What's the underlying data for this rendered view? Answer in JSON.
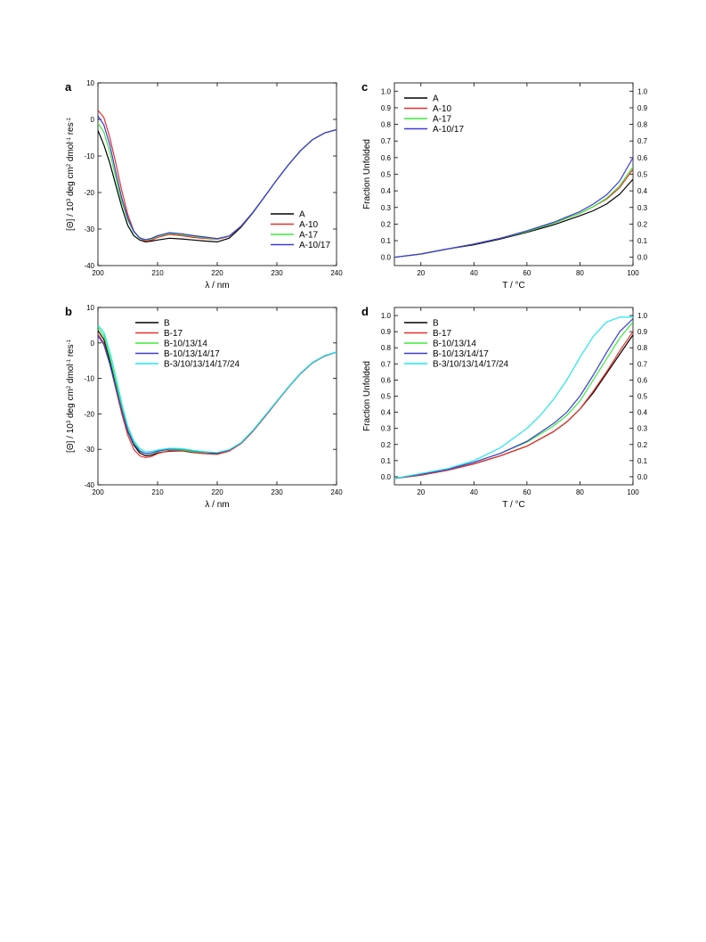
{
  "colors": {
    "black": "#000000",
    "red": "#e8302a",
    "green": "#3ee83a",
    "blue": "#3b3bd6",
    "cyan": "#22e6f2"
  },
  "chart_data": [
    {
      "id": "a",
      "panel_label": "a",
      "type": "line",
      "xlabel": "λ / nm",
      "ylabel_html": "[Θ] / 10<tspan baseline-shift='super' font-size='6'>3</tspan> deg cm<tspan baseline-shift='super' font-size='6'>2</tspan> dmol<tspan baseline-shift='super' font-size='6'>-1</tspan> res<tspan baseline-shift='super' font-size='6'>-1</tspan>",
      "xlim": [
        200,
        240
      ],
      "ylim": [
        -40,
        10
      ],
      "xticks": [
        200,
        210,
        220,
        230,
        240
      ],
      "yticks": [
        -40,
        -30,
        -20,
        -10,
        0,
        10
      ],
      "right_axis_labels": false,
      "legend": "bottom-right",
      "series": [
        {
          "name": "A",
          "color": "#000000",
          "x": [
            200,
            201,
            202,
            203,
            204,
            205,
            206,
            207,
            208,
            209,
            210,
            212,
            214,
            216,
            218,
            220,
            222,
            224,
            226,
            228,
            230,
            232,
            234,
            236,
            238,
            240
          ],
          "y": [
            -3,
            -7,
            -12,
            -18,
            -24,
            -29,
            -31.8,
            -33,
            -33.5,
            -33.3,
            -33,
            -32.5,
            -32.7,
            -33,
            -33.3,
            -33.5,
            -32.5,
            -29.5,
            -25.5,
            -21,
            -16.5,
            -12.3,
            -8.5,
            -5.5,
            -3.7,
            -2.8
          ]
        },
        {
          "name": "A-10",
          "color": "#e8302a",
          "x": [
            200,
            201,
            202,
            203,
            204,
            205,
            206,
            207,
            208,
            209,
            210,
            212,
            214,
            216,
            218,
            220,
            222,
            224,
            226,
            228,
            230,
            232,
            234,
            236,
            238,
            240
          ],
          "y": [
            2.5,
            0.5,
            -5,
            -12,
            -19.5,
            -26,
            -30.5,
            -32.5,
            -33.3,
            -33,
            -32.3,
            -31.5,
            -31.8,
            -32.3,
            -32.6,
            -32.8,
            -32,
            -29.3,
            -25.4,
            -21,
            -16.5,
            -12.3,
            -8.5,
            -5.5,
            -3.7,
            -2.8
          ]
        },
        {
          "name": "A-17",
          "color": "#3ee83a",
          "x": [
            200,
            201,
            202,
            203,
            204,
            205,
            206,
            207,
            208,
            209,
            210,
            212,
            214,
            216,
            218,
            220,
            222,
            224,
            226,
            228,
            230,
            232,
            234,
            236,
            238,
            240
          ],
          "y": [
            -1,
            -3.5,
            -9,
            -16,
            -22.5,
            -27.5,
            -30.8,
            -32.5,
            -33,
            -32.7,
            -32,
            -31.2,
            -31.5,
            -32,
            -32.4,
            -32.7,
            -31.9,
            -29.2,
            -25.4,
            -21,
            -16.5,
            -12.3,
            -8.5,
            -5.5,
            -3.7,
            -2.8
          ]
        },
        {
          "name": "A-10/17",
          "color": "#3b3bd6",
          "x": [
            200,
            201,
            202,
            203,
            204,
            205,
            206,
            207,
            208,
            209,
            210,
            212,
            214,
            216,
            218,
            220,
            222,
            224,
            226,
            228,
            230,
            232,
            234,
            236,
            238,
            240
          ],
          "y": [
            1,
            -1.5,
            -7,
            -14.5,
            -21.5,
            -27,
            -30.6,
            -32.4,
            -32.9,
            -32.5,
            -31.8,
            -31,
            -31.3,
            -31.8,
            -32.2,
            -32.6,
            -31.9,
            -29.2,
            -25.4,
            -21,
            -16.5,
            -12.3,
            -8.5,
            -5.5,
            -3.7,
            -2.8
          ]
        }
      ]
    },
    {
      "id": "b",
      "panel_label": "b",
      "type": "line",
      "xlabel": "λ / nm",
      "ylabel_html": "[Θ] / 10<tspan baseline-shift='super' font-size='6'>3</tspan> deg cm<tspan baseline-shift='super' font-size='6'>2</tspan> dmol<tspan baseline-shift='super' font-size='6'>-1</tspan> res<tspan baseline-shift='super' font-size='6'>-1</tspan>",
      "xlim": [
        200,
        240
      ],
      "ylim": [
        -40,
        10
      ],
      "xticks": [
        200,
        210,
        220,
        230,
        240
      ],
      "yticks": [
        -40,
        -30,
        -20,
        -10,
        0,
        10
      ],
      "right_axis_labels": false,
      "legend": "top-left",
      "series": [
        {
          "name": "B",
          "color": "#000000",
          "x": [
            200,
            201,
            202,
            203,
            204,
            205,
            206,
            207,
            208,
            209,
            210,
            212,
            214,
            216,
            218,
            220,
            222,
            224,
            226,
            228,
            230,
            232,
            234,
            236,
            238,
            240
          ],
          "y": [
            3.5,
            1,
            -5,
            -12,
            -19,
            -25,
            -28.8,
            -31,
            -31.8,
            -31.6,
            -31,
            -30.5,
            -30.4,
            -30.9,
            -31.2,
            -31.2,
            -30.3,
            -28.3,
            -24.8,
            -20.7,
            -16.5,
            -12.4,
            -8.6,
            -5.6,
            -3.7,
            -2.6
          ]
        },
        {
          "name": "B-17",
          "color": "#e8302a",
          "x": [
            200,
            201,
            202,
            203,
            204,
            205,
            206,
            207,
            208,
            209,
            210,
            212,
            214,
            216,
            218,
            220,
            222,
            224,
            226,
            228,
            230,
            232,
            234,
            236,
            238,
            240
          ],
          "y": [
            2.5,
            0,
            -6,
            -13,
            -20,
            -26,
            -30,
            -31.8,
            -32.3,
            -32,
            -31.2,
            -30.3,
            -30.3,
            -30.8,
            -31.2,
            -31.4,
            -30.5,
            -28.4,
            -24.9,
            -20.8,
            -16.6,
            -12.4,
            -8.6,
            -5.6,
            -3.7,
            -2.6
          ]
        },
        {
          "name": "B-10/13/14",
          "color": "#3ee83a",
          "x": [
            200,
            201,
            202,
            203,
            204,
            205,
            206,
            207,
            208,
            209,
            210,
            212,
            214,
            216,
            218,
            220,
            222,
            224,
            226,
            228,
            230,
            232,
            234,
            236,
            238,
            240
          ],
          "y": [
            4.5,
            2,
            -4,
            -11,
            -18,
            -24,
            -28,
            -30.3,
            -31.2,
            -31.1,
            -30.6,
            -30,
            -30.1,
            -30.6,
            -30.9,
            -31,
            -30.2,
            -28.2,
            -24.7,
            -20.6,
            -16.4,
            -12.3,
            -8.5,
            -5.5,
            -3.6,
            -2.6
          ]
        },
        {
          "name": "B-10/13/14/17",
          "color": "#3b3bd6",
          "x": [
            200,
            201,
            202,
            203,
            204,
            205,
            206,
            207,
            208,
            209,
            210,
            212,
            214,
            216,
            218,
            220,
            222,
            224,
            226,
            228,
            230,
            232,
            234,
            236,
            238,
            240
          ],
          "y": [
            2,
            -0.5,
            -6,
            -12.5,
            -19,
            -24.8,
            -28.5,
            -30.5,
            -31.2,
            -31,
            -30.5,
            -29.9,
            -29.9,
            -30.4,
            -30.8,
            -31,
            -30.2,
            -28.2,
            -24.7,
            -20.6,
            -16.4,
            -12.3,
            -8.5,
            -5.5,
            -3.6,
            -2.6
          ]
        },
        {
          "name": "B-3/10/13/14/17/24",
          "color": "#22e6f2",
          "x": [
            200,
            201,
            202,
            203,
            204,
            205,
            206,
            207,
            208,
            209,
            210,
            212,
            214,
            216,
            218,
            220,
            222,
            224,
            226,
            228,
            230,
            232,
            234,
            236,
            238,
            240
          ],
          "y": [
            5,
            3,
            -2.5,
            -9.5,
            -17,
            -23.5,
            -27.5,
            -29.8,
            -30.7,
            -30.6,
            -30.2,
            -29.7,
            -29.8,
            -30.3,
            -30.7,
            -30.9,
            -30.1,
            -28.1,
            -24.6,
            -20.5,
            -16.4,
            -12.3,
            -8.5,
            -5.5,
            -3.6,
            -2.6
          ]
        }
      ]
    },
    {
      "id": "c",
      "panel_label": "c",
      "type": "line",
      "xlabel": "T / °C",
      "ylabel": "Fraction Unfolded",
      "xlim": [
        10,
        100
      ],
      "ylim": [
        -0.05,
        1.05
      ],
      "xticks": [
        20,
        40,
        60,
        80,
        100
      ],
      "yticks": [
        0.0,
        0.1,
        0.2,
        0.3,
        0.4,
        0.5,
        0.6,
        0.7,
        0.8,
        0.9,
        1.0
      ],
      "right_axis_labels": true,
      "legend": "top-left",
      "series": [
        {
          "name": "A",
          "color": "#000000",
          "x": [
            10,
            20,
            30,
            40,
            50,
            60,
            70,
            80,
            85,
            90,
            95,
            100
          ],
          "y": [
            0,
            0.02,
            0.05,
            0.075,
            0.11,
            0.15,
            0.195,
            0.25,
            0.28,
            0.32,
            0.38,
            0.47
          ]
        },
        {
          "name": "A-10",
          "color": "#e8302a",
          "x": [
            10,
            20,
            30,
            40,
            50,
            60,
            70,
            80,
            85,
            90,
            95,
            100
          ],
          "y": [
            0,
            0.02,
            0.05,
            0.08,
            0.115,
            0.155,
            0.205,
            0.265,
            0.305,
            0.35,
            0.42,
            0.53
          ]
        },
        {
          "name": "A-17",
          "color": "#3ee83a",
          "x": [
            10,
            20,
            30,
            40,
            50,
            60,
            70,
            80,
            85,
            90,
            95,
            100
          ],
          "y": [
            0,
            0.02,
            0.05,
            0.08,
            0.115,
            0.155,
            0.205,
            0.265,
            0.305,
            0.355,
            0.43,
            0.545
          ]
        },
        {
          "name": "A-10/17",
          "color": "#3b3bd6",
          "x": [
            10,
            20,
            30,
            40,
            50,
            60,
            70,
            80,
            85,
            90,
            95,
            100
          ],
          "y": [
            0,
            0.02,
            0.05,
            0.08,
            0.115,
            0.16,
            0.21,
            0.275,
            0.32,
            0.375,
            0.46,
            0.6
          ]
        }
      ]
    },
    {
      "id": "d",
      "panel_label": "d",
      "type": "line",
      "xlabel": "T / °C",
      "ylabel": "Fraction Unfolded",
      "xlim": [
        10,
        100
      ],
      "ylim": [
        -0.05,
        1.05
      ],
      "xticks": [
        20,
        40,
        60,
        80,
        100
      ],
      "yticks": [
        0.0,
        0.1,
        0.2,
        0.3,
        0.4,
        0.5,
        0.6,
        0.7,
        0.8,
        0.9,
        1.0
      ],
      "right_axis_labels": true,
      "legend": "top-left",
      "series": [
        {
          "name": "B",
          "color": "#000000",
          "x": [
            10,
            20,
            30,
            40,
            50,
            60,
            70,
            75,
            80,
            85,
            90,
            95,
            100
          ],
          "y": [
            -0.01,
            0.01,
            0.04,
            0.08,
            0.13,
            0.19,
            0.28,
            0.34,
            0.42,
            0.52,
            0.64,
            0.76,
            0.88
          ]
        },
        {
          "name": "B-17",
          "color": "#e8302a",
          "x": [
            10,
            20,
            30,
            40,
            50,
            60,
            70,
            75,
            80,
            85,
            90,
            95,
            100
          ],
          "y": [
            -0.01,
            0.01,
            0.04,
            0.08,
            0.13,
            0.19,
            0.28,
            0.34,
            0.42,
            0.53,
            0.65,
            0.78,
            0.9
          ]
        },
        {
          "name": "B-10/13/14",
          "color": "#3ee83a",
          "x": [
            10,
            20,
            30,
            40,
            50,
            60,
            70,
            75,
            80,
            85,
            90,
            95,
            100
          ],
          "y": [
            -0.01,
            0.015,
            0.05,
            0.09,
            0.145,
            0.215,
            0.315,
            0.38,
            0.47,
            0.6,
            0.73,
            0.86,
            0.96
          ]
        },
        {
          "name": "B-10/13/14/17",
          "color": "#3b3bd6",
          "x": [
            10,
            20,
            30,
            40,
            50,
            60,
            70,
            75,
            80,
            85,
            90,
            95,
            100
          ],
          "y": [
            -0.01,
            0.015,
            0.045,
            0.09,
            0.145,
            0.22,
            0.33,
            0.4,
            0.5,
            0.63,
            0.77,
            0.9,
            0.98
          ]
        },
        {
          "name": "B-3/10/13/14/17/24",
          "color": "#22e6f2",
          "x": [
            10,
            20,
            30,
            40,
            50,
            60,
            65,
            70,
            75,
            80,
            85,
            90,
            95,
            100
          ],
          "y": [
            -0.01,
            0.02,
            0.05,
            0.1,
            0.18,
            0.3,
            0.38,
            0.48,
            0.6,
            0.74,
            0.87,
            0.96,
            0.99,
            0.99
          ]
        }
      ]
    }
  ]
}
